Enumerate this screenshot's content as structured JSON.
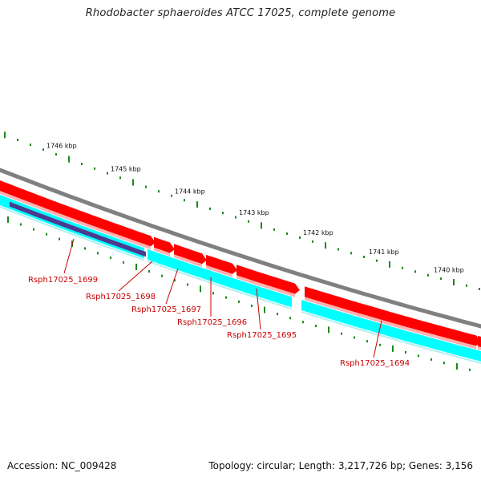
{
  "title": "Rhodobacter sphaeroides ATCC 17025, complete genome",
  "footer": {
    "accession": "Accession: NC_009428",
    "stats": "Topology: circular; Length: 3,217,726 bp; Genes: 3,156"
  },
  "colors": {
    "backbone": "#808080",
    "forward_cds": "#ff0000",
    "reverse_cds": "#00ffff",
    "other_feature": "#4b3b8f",
    "tick": "#1a8a1a",
    "label": "#cc0000"
  },
  "kbp_labels": [
    "1746 kbp",
    "1745 kbp",
    "1744 kbp",
    "1743 kbp",
    "1742 kbp",
    "1741 kbp",
    "1740 kbp"
  ],
  "gene_labels": [
    "Rsph17025_1699",
    "Rsph17025_1698",
    "Rsph17025_1697",
    "Rsph17025_1696",
    "Rsph17025_1695",
    "Rsph17025_1694"
  ]
}
